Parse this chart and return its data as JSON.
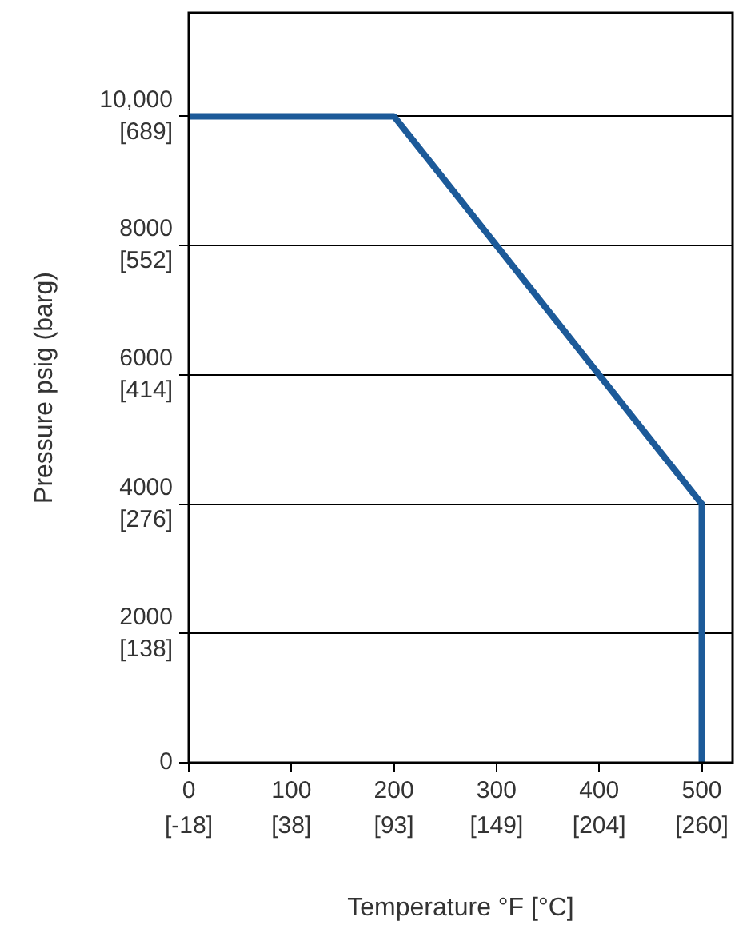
{
  "chart_data": {
    "type": "line",
    "xlabel": "Temperature °F [°C]",
    "ylabel": "Pressure psig (barg)",
    "x": [
      0,
      200,
      500,
      500
    ],
    "series": [
      {
        "color": "#1c5a99",
        "values": [
          10000,
          10000,
          4000,
          0
        ]
      }
    ],
    "xlim": [
      0,
      530
    ],
    "ylim": [
      0,
      11600
    ],
    "xticks": [
      0,
      100,
      200,
      300,
      400,
      500
    ],
    "x2lim": [
      -18,
      276.7
    ],
    "x2ticks": [
      {
        "value": -18,
        "label": "[-18]"
      },
      {
        "value": 38,
        "label": "[38]"
      },
      {
        "value": 93,
        "label": "[93]"
      },
      {
        "value": 149,
        "label": "[149]"
      },
      {
        "value": 204,
        "label": "[204]"
      },
      {
        "value": 260,
        "label": "[260]"
      }
    ],
    "yticks": [
      0,
      2000,
      4000,
      6000,
      8000,
      {
        "value": 10000,
        "label": "10,000"
      }
    ],
    "y2lim": [
      0,
      799.8
    ],
    "y2ticks": [
      {
        "value": 138,
        "label": "[138]"
      },
      {
        "value": 276,
        "label": "[276]"
      },
      {
        "value": 414,
        "label": "[414]"
      },
      {
        "value": 552,
        "label": "[552]"
      },
      {
        "value": 689,
        "label": "[689]"
      }
    ],
    "grid": "y",
    "legend": false,
    "marker": "none",
    "line_style": "solid"
  }
}
